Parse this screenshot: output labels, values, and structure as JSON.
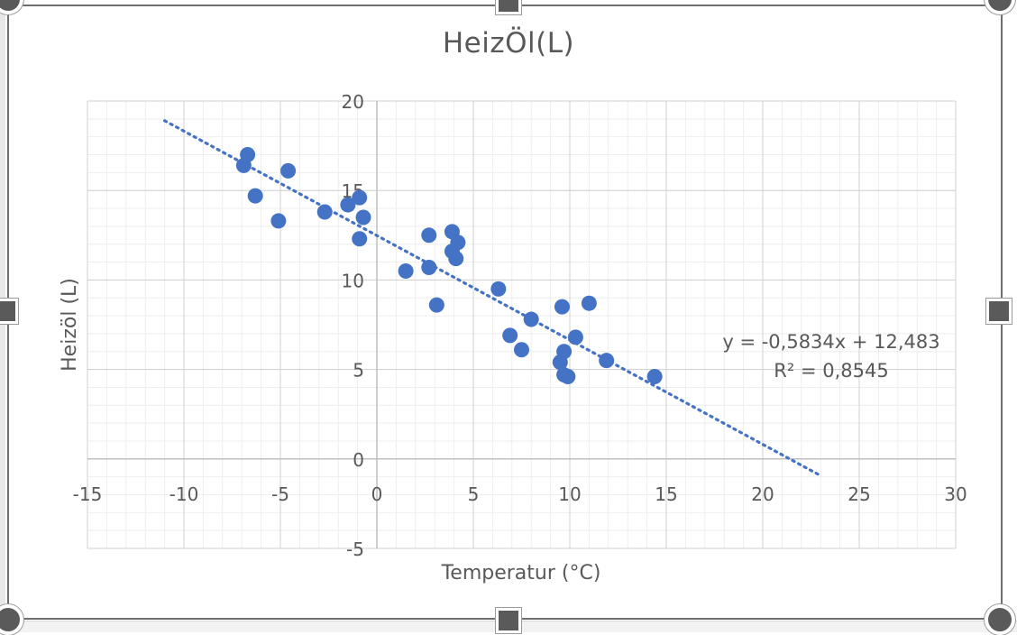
{
  "chart_data": {
    "type": "scatter",
    "title": "HeizÖl(L)",
    "xlabel": "Temperatur (°C)",
    "ylabel": "Heizöl (L)",
    "xlim": [
      -15,
      30
    ],
    "ylim": [
      -5,
      20
    ],
    "x_ticks": [
      "-15",
      "-10",
      "-5",
      "0",
      "5",
      "10",
      "15",
      "20",
      "25",
      "30"
    ],
    "y_ticks": [
      "-5",
      "0",
      "5",
      "10",
      "15",
      "20"
    ],
    "grid": "major and minor",
    "marker_color": "#4472c4",
    "points": [
      {
        "x": -6.7,
        "y": 17.0
      },
      {
        "x": -6.9,
        "y": 16.4
      },
      {
        "x": -4.6,
        "y": 16.1
      },
      {
        "x": -6.3,
        "y": 14.7
      },
      {
        "x": -5.1,
        "y": 13.3
      },
      {
        "x": -2.7,
        "y": 13.8
      },
      {
        "x": -1.5,
        "y": 14.2
      },
      {
        "x": -0.9,
        "y": 14.6
      },
      {
        "x": -0.7,
        "y": 13.5
      },
      {
        "x": -0.9,
        "y": 12.3
      },
      {
        "x": 1.5,
        "y": 10.5
      },
      {
        "x": 2.7,
        "y": 12.5
      },
      {
        "x": 2.7,
        "y": 10.7
      },
      {
        "x": 3.1,
        "y": 8.6
      },
      {
        "x": 3.9,
        "y": 12.7
      },
      {
        "x": 4.2,
        "y": 12.1
      },
      {
        "x": 3.9,
        "y": 11.6
      },
      {
        "x": 4.1,
        "y": 11.2
      },
      {
        "x": 6.3,
        "y": 9.5
      },
      {
        "x": 6.9,
        "y": 6.9
      },
      {
        "x": 7.5,
        "y": 6.1
      },
      {
        "x": 8.0,
        "y": 7.8
      },
      {
        "x": 9.6,
        "y": 8.5
      },
      {
        "x": 9.7,
        "y": 6.0
      },
      {
        "x": 9.5,
        "y": 5.4
      },
      {
        "x": 9.7,
        "y": 4.7
      },
      {
        "x": 9.9,
        "y": 4.6
      },
      {
        "x": 10.3,
        "y": 6.8
      },
      {
        "x": 11.0,
        "y": 8.7
      },
      {
        "x": 11.9,
        "y": 5.5
      },
      {
        "x": 14.4,
        "y": 4.6
      }
    ],
    "trendline": {
      "type": "linear",
      "slope": -0.5834,
      "intercept": 12.483,
      "x_range": [
        -11,
        23
      ],
      "color": "#4472c4",
      "style": "dotted",
      "equation_label": "y = -0,5834x + 12,483",
      "r2_label": "R² = 0,8545"
    }
  }
}
